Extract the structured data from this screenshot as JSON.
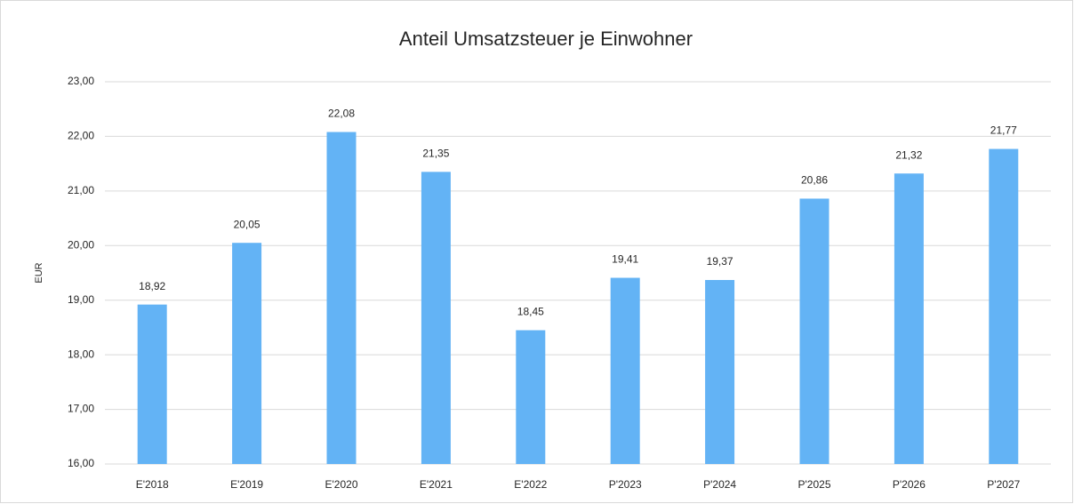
{
  "chart_data": {
    "type": "bar",
    "title": "Anteil Umsatzsteuer je Einwohner",
    "y_label": "EUR",
    "categories": [
      "E'2018",
      "E'2019",
      "E'2020",
      "E'2021",
      "E'2022",
      "P'2023",
      "P'2024",
      "P'2025",
      "P'2026",
      "P'2027"
    ],
    "values": [
      18.92,
      20.05,
      22.08,
      21.35,
      18.45,
      19.41,
      19.37,
      20.86,
      21.32,
      21.77
    ],
    "value_labels": [
      "18,92",
      "20,05",
      "22,08",
      "21,35",
      "18,45",
      "19,41",
      "19,37",
      "20,86",
      "21,32",
      "21,77"
    ],
    "color": "#63b3f5",
    "ylim": [
      16,
      23
    ],
    "yticks": [
      {
        "value": 16,
        "label": "16,00"
      },
      {
        "value": 17,
        "label": "17,00"
      },
      {
        "value": 18,
        "label": "18,00"
      },
      {
        "value": 19,
        "label": "19,00"
      },
      {
        "value": 20,
        "label": "20,00"
      },
      {
        "value": 21,
        "label": "21,00"
      },
      {
        "value": 22,
        "label": "22,00"
      },
      {
        "value": 23,
        "label": "23,00"
      }
    ],
    "grid": true
  }
}
